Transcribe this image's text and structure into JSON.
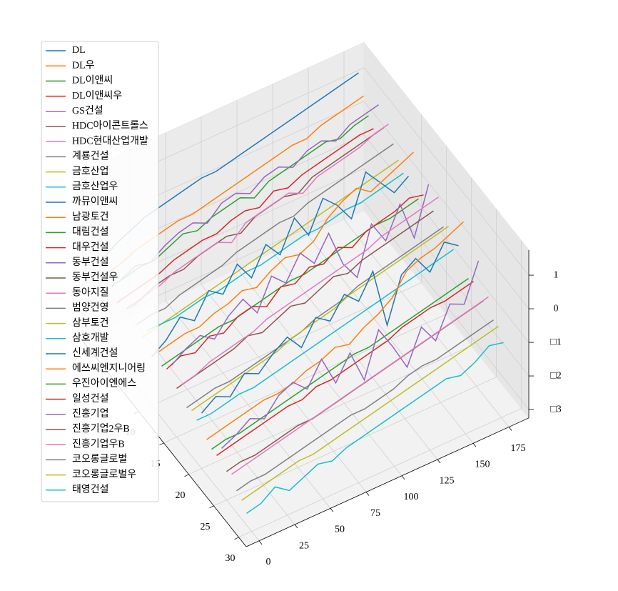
{
  "chart_data": {
    "type": "line3d",
    "x": [
      0,
      10,
      20,
      30,
      40,
      50,
      60,
      70,
      80,
      90,
      100,
      110,
      120,
      130,
      140,
      150,
      160,
      170,
      180
    ],
    "xlim": [
      -9,
      189
    ],
    "xticks": [
      0,
      25,
      50,
      75,
      100,
      125,
      150,
      175
    ],
    "ylim": [
      -1.5,
      31.5
    ],
    "yticks": [
      10,
      15,
      20,
      25,
      30
    ],
    "zlim": [
      -3.25,
      1.75
    ],
    "zticks": [
      {
        "value": -3,
        "label": "□3"
      },
      {
        "value": -2,
        "label": "□2"
      },
      {
        "value": -1,
        "label": "□1"
      },
      0,
      1
    ],
    "grid": true,
    "legend": "upper left",
    "series": [
      {
        "name": "DL",
        "color": "#1f77b4",
        "values": [
          -0.8,
          -0.5,
          -0.3,
          -0.1,
          0.0,
          0.1,
          0.2,
          0.3,
          0.3,
          0.4,
          0.5,
          0.6,
          0.7,
          0.8,
          0.9,
          1.0,
          1.1,
          1.2,
          1.3
        ]
      },
      {
        "name": "DL우",
        "color": "#ff7f0e",
        "values": [
          -1.0,
          -0.9,
          -0.7,
          -0.6,
          -0.5,
          -0.4,
          -0.4,
          -0.3,
          -0.2,
          -0.1,
          0.0,
          0.1,
          0.2,
          0.3,
          0.3,
          0.5,
          0.6,
          0.7,
          0.8
        ]
      },
      {
        "name": "DL이앤씨",
        "color": "#2ca02c",
        "values": [
          -1.2,
          -1.1,
          -1.0,
          -1.0,
          -0.8,
          -0.6,
          -0.7,
          -0.5,
          -0.4,
          -0.3,
          -0.5,
          -0.2,
          -0.1,
          0.0,
          0.1,
          0.2,
          0.1,
          0.3,
          0.4
        ]
      },
      {
        "name": "DL이앤씨우",
        "color": "#d62728",
        "values": [
          -1.5,
          -1.4,
          -1.3,
          -1.2,
          -1.0,
          -0.9,
          -0.8,
          -0.8,
          -0.6,
          -0.5,
          -0.6,
          -0.3,
          -0.4,
          -0.2,
          -0.1,
          0.0,
          0.1,
          0.2,
          0.2
        ]
      },
      {
        "name": "GS건설",
        "color": "#9467bd",
        "values": [
          -0.6,
          -0.4,
          -0.5,
          -0.2,
          0.0,
          0.1,
          -0.1,
          0.3,
          0.4,
          0.2,
          0.5,
          0.6,
          0.4,
          0.7,
          0.8,
          0.6,
          0.9,
          1.0,
          1.1
        ]
      },
      {
        "name": "HDC아이콘트롤스",
        "color": "#8c564b",
        "values": [
          -1.3,
          -1.2,
          -1.0,
          -0.9,
          -0.9,
          -0.7,
          -0.6,
          -0.5,
          -0.6,
          -0.3,
          -0.2,
          -0.1,
          -0.2,
          0.1,
          0.2,
          0.3,
          0.4,
          0.5,
          0.6
        ]
      },
      {
        "name": "HDC현대산업개발",
        "color": "#e377c2",
        "values": [
          -1.1,
          -0.9,
          -0.8,
          -0.6,
          -0.5,
          -0.4,
          -0.3,
          -0.5,
          -0.1,
          0.0,
          0.1,
          0.2,
          0.0,
          0.3,
          0.4,
          0.5,
          0.6,
          0.8,
          0.9
        ]
      },
      {
        "name": "계룡건설",
        "color": "#7f7f7f",
        "values": [
          -1.4,
          -1.3,
          -1.3,
          -1.1,
          -1.0,
          -0.9,
          -0.8,
          -0.6,
          -0.5,
          -0.4,
          -0.3,
          -0.3,
          -0.1,
          0.0,
          0.1,
          0.2,
          0.3,
          0.4,
          0.5
        ]
      },
      {
        "name": "금호산업",
        "color": "#bcbd22",
        "values": [
          -1.6,
          -1.5,
          -1.4,
          -1.3,
          -1.2,
          -1.1,
          -1.0,
          -0.9,
          -0.8,
          -0.7,
          -0.6,
          -0.5,
          -0.4,
          -0.3,
          -0.2,
          -0.1,
          0.0,
          0.1,
          0.2
        ]
      },
      {
        "name": "금호산업우",
        "color": "#17becf",
        "values": [
          -1.2,
          -1.2,
          -1.2,
          -1.1,
          -1.0,
          -1.0,
          -0.9,
          -0.8,
          -0.8,
          -0.7,
          -0.6,
          -0.5,
          -0.5,
          -0.4,
          -0.3,
          -0.3,
          -0.2,
          -0.1,
          0.0
        ]
      },
      {
        "name": "까뮤이앤씨",
        "color": "#1f77b4",
        "values": [
          -1.8,
          -1.5,
          -1.0,
          -1.3,
          -0.6,
          -0.9,
          -0.2,
          -0.8,
          0.0,
          -0.5,
          0.4,
          -0.3,
          0.6,
          0.2,
          -0.4,
          0.8,
          0.3,
          -0.2,
          0.1
        ]
      },
      {
        "name": "남광토건",
        "color": "#ff7f0e",
        "values": [
          -1.5,
          -1.4,
          -1.3,
          -1.3,
          -1.1,
          -1.0,
          -0.8,
          -0.9,
          -0.6,
          -0.4,
          -0.5,
          -0.3,
          0.2,
          0.5,
          0.7,
          0.4,
          0.6,
          0.8,
          1.0
        ]
      },
      {
        "name": "대림건설",
        "color": "#2ca02c",
        "values": [
          -1.7,
          -1.6,
          -1.5,
          -1.4,
          -1.3,
          -1.3,
          -1.2,
          -1.1,
          -1.0,
          -0.9,
          -0.9,
          -0.8,
          -0.7,
          -0.6,
          -0.5,
          -0.4,
          -0.4,
          -0.3,
          -0.2
        ]
      },
      {
        "name": "대우건설",
        "color": "#d62728",
        "values": [
          -1.6,
          -1.4,
          -1.5,
          -1.2,
          -1.3,
          -1.0,
          -0.9,
          -1.1,
          -0.7,
          -0.8,
          -0.5,
          -0.6,
          -0.3,
          -0.5,
          -0.2,
          -0.1,
          0.0,
          0.2,
          0.1
        ]
      },
      {
        "name": "동부건설",
        "color": "#9467bd",
        "values": [
          -1.3,
          -1.0,
          -0.8,
          -1.1,
          -0.6,
          -0.3,
          -0.9,
          0.0,
          -0.4,
          0.3,
          -0.2,
          0.5,
          -0.6,
          -1.2,
          0.2,
          -0.5,
          0.4,
          -0.8,
          0.6
        ]
      },
      {
        "name": "동부건설우",
        "color": "#8c564b",
        "values": [
          -1.8,
          -1.7,
          -1.6,
          -1.5,
          -1.4,
          -1.2,
          -1.3,
          -1.1,
          -0.9,
          -1.0,
          -0.8,
          -0.6,
          -0.7,
          -0.5,
          -0.4,
          -0.3,
          -0.2,
          -0.1,
          0.0
        ]
      },
      {
        "name": "동아지질",
        "color": "#e377c2",
        "values": [
          -1.5,
          -1.4,
          -1.2,
          -1.1,
          -1.0,
          -0.9,
          -0.7,
          -0.6,
          -0.5,
          -0.4,
          -0.3,
          -0.2,
          -0.1,
          0.0,
          0.2,
          0.3,
          0.4,
          0.5,
          0.6
        ]
      },
      {
        "name": "범양건영",
        "color": "#7f7f7f",
        "values": [
          -2.0,
          -1.9,
          -1.8,
          -1.8,
          -1.7,
          -1.6,
          -1.5,
          -1.4,
          -1.3,
          -1.1,
          -1.0,
          -0.9,
          -0.7,
          -0.6,
          -0.5,
          -0.4,
          -0.3,
          -0.2,
          -0.1
        ]
      },
      {
        "name": "삼부토건",
        "color": "#bcbd22",
        "values": [
          -1.9,
          -1.8,
          -1.7,
          -1.6,
          -1.5,
          -1.4,
          -1.3,
          -1.1,
          -1.0,
          -0.9,
          -0.8,
          -0.6,
          -0.5,
          -0.4,
          -0.3,
          -0.2,
          -0.1,
          0.0,
          0.1
        ]
      },
      {
        "name": "삼호개발",
        "color": "#17becf",
        "values": [
          -2.0,
          -2.0,
          -1.9,
          -1.8,
          -1.8,
          -1.7,
          -1.6,
          -1.5,
          -1.4,
          -1.3,
          -1.2,
          -1.1,
          -1.0,
          -0.9,
          -0.8,
          -0.7,
          -0.6,
          -0.5,
          -0.4
        ]
      },
      {
        "name": "신세계건설",
        "color": "#1f77b4",
        "values": [
          -1.6,
          -1.3,
          -1.5,
          -1.0,
          -1.2,
          -0.8,
          -0.5,
          -1.0,
          -0.3,
          -0.6,
          0.0,
          -0.4,
          0.3,
          -1.5,
          -0.2,
          0.1,
          -0.5,
          0.2,
          -0.1
        ]
      },
      {
        "name": "에쓰씨엔지니어링",
        "color": "#ff7f0e",
        "values": [
          -2.2,
          -2.1,
          -2.0,
          -1.9,
          -1.8,
          -1.8,
          -1.7,
          -1.5,
          -1.4,
          -1.2,
          -1.3,
          -1.0,
          -0.8,
          -0.5,
          0.1,
          0.3,
          0.4,
          0.6,
          0.8
        ]
      },
      {
        "name": "우진아이엔에스",
        "color": "#2ca02c",
        "values": [
          -2.3,
          -2.2,
          -2.2,
          -2.1,
          -2.0,
          -1.9,
          -1.8,
          -1.7,
          -1.6,
          -1.5,
          -1.4,
          -1.4,
          -1.3,
          -1.2,
          -1.1,
          -1.0,
          -0.9,
          -0.8,
          -0.7
        ]
      },
      {
        "name": "일성건설",
        "color": "#d62728",
        "values": [
          -2.3,
          -2.2,
          -2.1,
          -2.0,
          -1.9,
          -1.8,
          -1.8,
          -1.6,
          -1.6,
          -1.5,
          -1.4,
          -1.3,
          -1.2,
          -1.0,
          -0.9,
          -0.8,
          -0.8,
          -0.7,
          -0.6
        ]
      },
      {
        "name": "진흥기업",
        "color": "#9467bd",
        "values": [
          -1.9,
          -1.7,
          -1.4,
          -1.6,
          -1.1,
          -0.9,
          -1.3,
          -0.6,
          -1.5,
          -0.8,
          -1.8,
          -0.5,
          -1.2,
          -2.0,
          -1.0,
          -1.6,
          -0.7,
          -0.9,
          0.2
        ]
      },
      {
        "name": "진흥기업2우B",
        "color": "#8c564b",
        "values": [
          -2.4,
          -2.3,
          -2.3,
          -2.2,
          -2.1,
          -2.0,
          -2.0,
          -1.9,
          -1.8,
          -1.7,
          -1.6,
          -1.5,
          -1.4,
          -1.3,
          -1.2,
          -1.1,
          -1.0,
          -0.9,
          -0.8
        ]
      },
      {
        "name": "진흥기업우B",
        "color": "#e377c2",
        "values": [
          -2.3,
          -2.2,
          -2.1,
          -2.0,
          -1.9,
          -1.8,
          -1.7,
          -1.6,
          -1.5,
          -1.4,
          -1.3,
          -1.2,
          -1.1,
          -1.0,
          -0.9,
          -0.8,
          -0.7,
          -0.6,
          -0.5
        ]
      },
      {
        "name": "코오롱글로벌",
        "color": "#7f7f7f",
        "values": [
          -2.6,
          -2.5,
          -2.5,
          -2.4,
          -2.3,
          -2.2,
          -2.1,
          -2.0,
          -1.9,
          -1.9,
          -1.8,
          -1.7,
          -1.5,
          -1.4,
          -1.4,
          -1.3,
          -1.2,
          -1.1,
          -1.0
        ]
      },
      {
        "name": "코오롱글로벌우",
        "color": "#bcbd22",
        "values": [
          -2.7,
          -2.6,
          -2.5,
          -2.4,
          -2.3,
          -2.3,
          -2.2,
          -2.1,
          -2.0,
          -1.9,
          -1.8,
          -1.7,
          -1.6,
          -1.5,
          -1.4,
          -1.3,
          -1.2,
          -1.1,
          -1.0
        ]
      },
      {
        "name": "태영건설",
        "color": "#17becf",
        "values": [
          -2.9,
          -2.8,
          -2.5,
          -2.8,
          -2.6,
          -2.4,
          -2.5,
          -2.3,
          -2.2,
          -2.1,
          -2.0,
          -1.9,
          -1.8,
          -1.7,
          -1.6,
          -1.7,
          -1.5,
          -1.2,
          -1.3
        ]
      }
    ]
  }
}
